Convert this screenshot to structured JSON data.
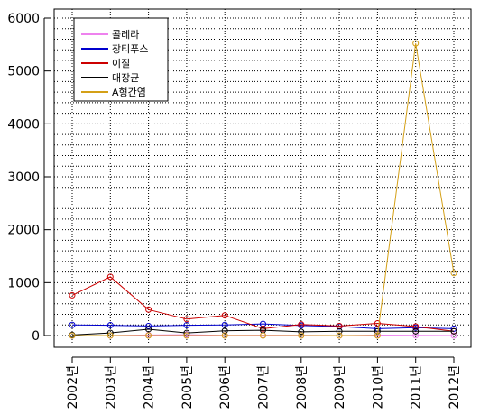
{
  "chart_data": {
    "type": "line",
    "categories": [
      "2002년",
      "2003년",
      "2004년",
      "2005년",
      "2006년",
      "2007년",
      "2008년",
      "2009년",
      "2010년",
      "2011년",
      "2012년"
    ],
    "series": [
      {
        "name": "콜레라",
        "color": "#ee82ee",
        "values": [
          0,
          0,
          10,
          16,
          5,
          7,
          5,
          0,
          8,
          3,
          0
        ]
      },
      {
        "name": "장티푸스",
        "color": "#0000cd",
        "values": [
          200,
          195,
          180,
          195,
          200,
          220,
          190,
          170,
          130,
          150,
          130
        ]
      },
      {
        "name": "이질",
        "color": "#cc0000",
        "values": [
          760,
          1110,
          490,
          310,
          380,
          130,
          210,
          180,
          230,
          170,
          80
        ]
      },
      {
        "name": "대장균",
        "color": "#000000",
        "values": [
          10,
          50,
          120,
          50,
          90,
          100,
          70,
          80,
          80,
          80,
          80
        ]
      },
      {
        "name": "A형간염",
        "color": "#d4a017",
        "values": [
          0,
          0,
          0,
          0,
          0,
          0,
          0,
          0,
          0,
          5520,
          1180
        ]
      }
    ],
    "yticks": [
      0,
      1000,
      2000,
      3000,
      4000,
      5000,
      6000
    ],
    "ylim": [
      0,
      6000
    ],
    "grid": "dotted",
    "legend_position": "top-left"
  }
}
